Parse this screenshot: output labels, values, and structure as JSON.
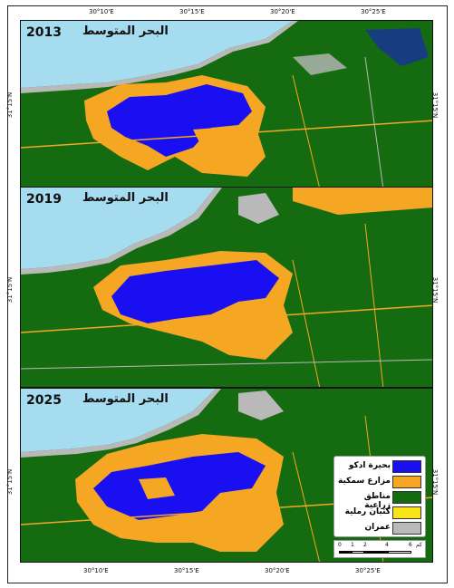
{
  "map": {
    "panels": [
      {
        "year": "2013",
        "sea_label": "البحر المتوسط"
      },
      {
        "year": "2019",
        "sea_label": "البحر المتوسط"
      },
      {
        "year": "2025",
        "sea_label": "البحر المتوسط"
      }
    ],
    "lon_ticks": [
      "30°10'E",
      "30°15'E",
      "30°20'E",
      "30°25'E"
    ],
    "lat_tick": "31°15'N",
    "legend": [
      {
        "label": "بحيرة ادكو",
        "color": "#1a0ff0"
      },
      {
        "label": "مزارع سمكية",
        "color": "#f5a623"
      },
      {
        "label": "مناطق زراعية",
        "color": "#156b10"
      },
      {
        "label": "كثبان رملية",
        "color": "#f7e51a"
      },
      {
        "label": "عمران",
        "color": "#b9b9b9"
      }
    ],
    "scale": {
      "ticks": [
        "0",
        "1",
        "2",
        "4",
        "6"
      ],
      "unit": "كم"
    },
    "colors": {
      "sea": "#a6dcf0",
      "urban": "#b9b9b9",
      "lake": "#1a0ff0",
      "fish": "#f5a623",
      "agri": "#156b10"
    }
  }
}
